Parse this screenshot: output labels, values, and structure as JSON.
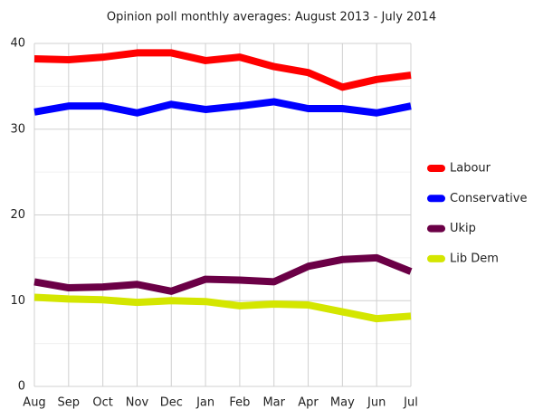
{
  "chart_data": {
    "type": "line",
    "title": "Opinion poll monthly averages: August 2013 - July 2014",
    "categories": [
      "Aug",
      "Sep",
      "Oct",
      "Nov",
      "Dec",
      "Jan",
      "Feb",
      "Mar",
      "Apr",
      "May",
      "Jun",
      "Jul"
    ],
    "series": [
      {
        "name": "Labour",
        "color": "#ff0000",
        "values": [
          38.2,
          38.1,
          38.4,
          38.9,
          38.9,
          38.0,
          38.4,
          37.3,
          36.6,
          34.9,
          35.8,
          36.3
        ]
      },
      {
        "name": "Conservative",
        "color": "#0000ff",
        "values": [
          32.0,
          32.7,
          32.7,
          31.9,
          32.9,
          32.3,
          32.7,
          33.2,
          32.4,
          32.4,
          31.9,
          32.7
        ]
      },
      {
        "name": "Ukip",
        "color": "#6b0046",
        "values": [
          12.2,
          11.5,
          11.6,
          11.9,
          11.1,
          12.5,
          12.4,
          12.2,
          14.0,
          14.8,
          15.0,
          13.4
        ]
      },
      {
        "name": "Lib Dem",
        "color": "#d4e600",
        "values": [
          10.4,
          10.2,
          10.1,
          9.8,
          10.0,
          9.9,
          9.4,
          9.6,
          9.5,
          8.7,
          7.9,
          8.2
        ]
      }
    ],
    "ylim": [
      0,
      40
    ],
    "yticks": [
      0,
      10,
      20,
      30,
      40
    ],
    "minor_yticks": [
      5,
      15,
      25,
      35
    ],
    "grid": true,
    "legend": "right"
  }
}
